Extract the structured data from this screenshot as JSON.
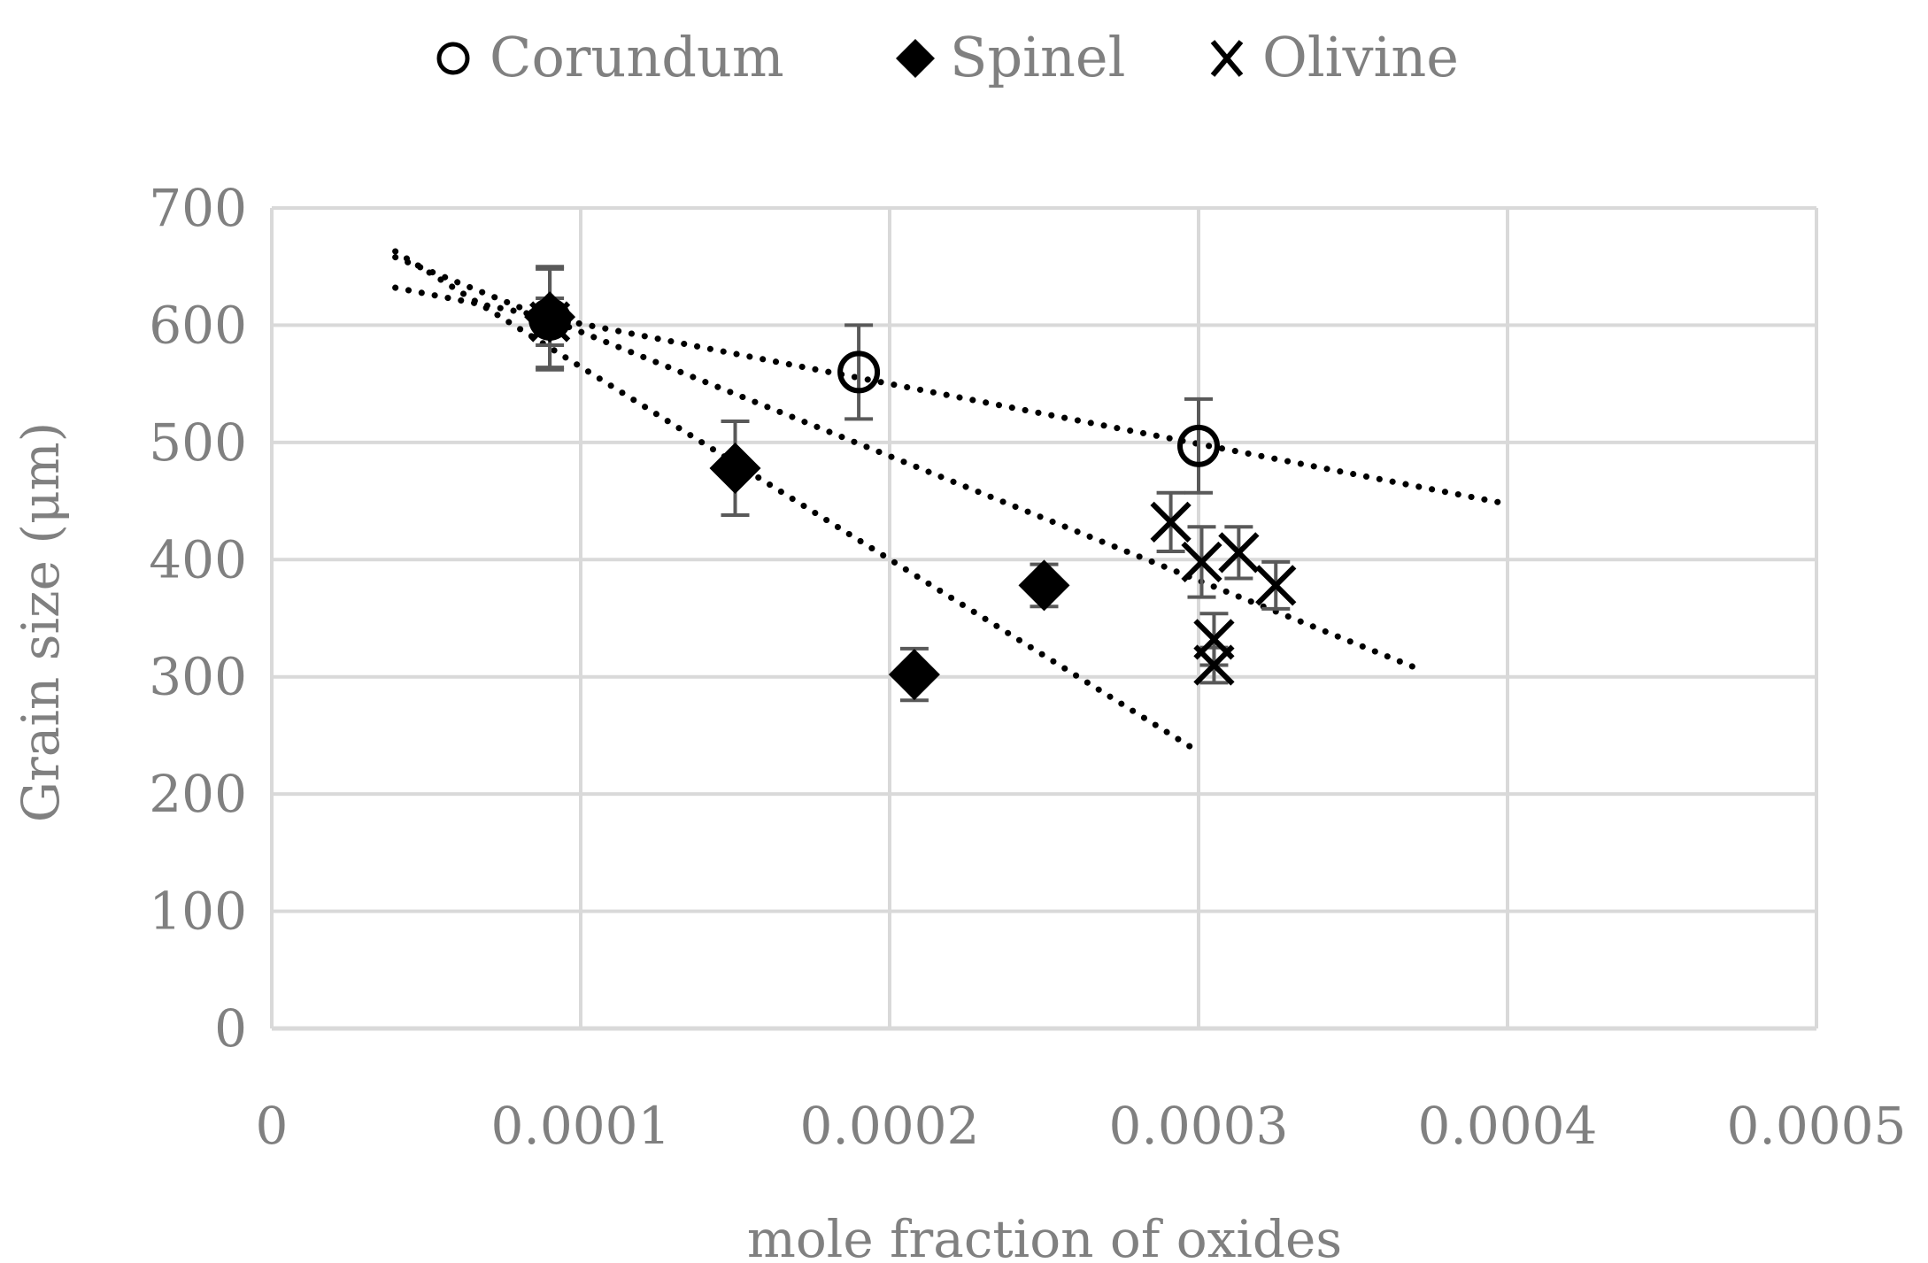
{
  "chart_data": {
    "type": "scatter",
    "title": "",
    "xlabel": "mole fraction of oxides",
    "ylabel": "Grain size (μm)",
    "xlim": [
      0,
      0.0005
    ],
    "ylim": [
      0,
      700
    ],
    "grid": true,
    "legend_position": "top",
    "x_tick_labels": [
      "0",
      "0.0001",
      "0.0002",
      "0.0003",
      "0.0004",
      "0.0005"
    ],
    "x_ticks": [
      0,
      0.0001,
      0.0002,
      0.0003,
      0.0004,
      0.0005
    ],
    "y_tick_labels": [
      "0",
      "100",
      "200",
      "300",
      "400",
      "500",
      "600",
      "700"
    ],
    "y_ticks": [
      0,
      100,
      200,
      300,
      400,
      500,
      600,
      700
    ],
    "series": [
      {
        "name": "Corundum",
        "marker": "open-circle",
        "points": [
          {
            "x": 9e-05,
            "y": 605,
            "err": 43
          },
          {
            "x": 0.00019,
            "y": 560,
            "err": 40
          },
          {
            "x": 0.0003,
            "y": 497,
            "err": 40
          }
        ],
        "trendline": {
          "x": [
            4e-05,
            0.000397
          ],
          "y": [
            632,
            449
          ]
        }
      },
      {
        "name": "Spinel",
        "marker": "filled-diamond",
        "points": [
          {
            "x": 9e-05,
            "y": 607,
            "err": 43
          },
          {
            "x": 0.00015,
            "y": 478,
            "err": 40
          },
          {
            "x": 0.000208,
            "y": 302,
            "err": 22
          },
          {
            "x": 0.00025,
            "y": 378,
            "err": 18
          }
        ],
        "trendline": {
          "x": [
            4e-05,
            0.0003
          ],
          "y": [
            663,
            236
          ]
        }
      },
      {
        "name": "Olivine",
        "marker": "x",
        "points": [
          {
            "x": 9e-05,
            "y": 603,
            "err": 20
          },
          {
            "x": 0.000291,
            "y": 432,
            "err": 25
          },
          {
            "x": 0.000301,
            "y": 398,
            "err": 30
          },
          {
            "x": 0.000313,
            "y": 406,
            "err": 22
          },
          {
            "x": 0.000325,
            "y": 378,
            "err": 20
          },
          {
            "x": 0.000305,
            "y": 332,
            "err": 22
          },
          {
            "x": 0.000305,
            "y": 310,
            "err": 15
          }
        ],
        "trendline": {
          "x": [
            4e-05,
            0.00037
          ],
          "y": [
            658,
            308
          ]
        }
      }
    ],
    "colors": {
      "axis_text": "#808080",
      "grid": "#d9d9d9",
      "marker": "#000000",
      "error_bar": "#595959",
      "legend_text": "#808080"
    }
  }
}
